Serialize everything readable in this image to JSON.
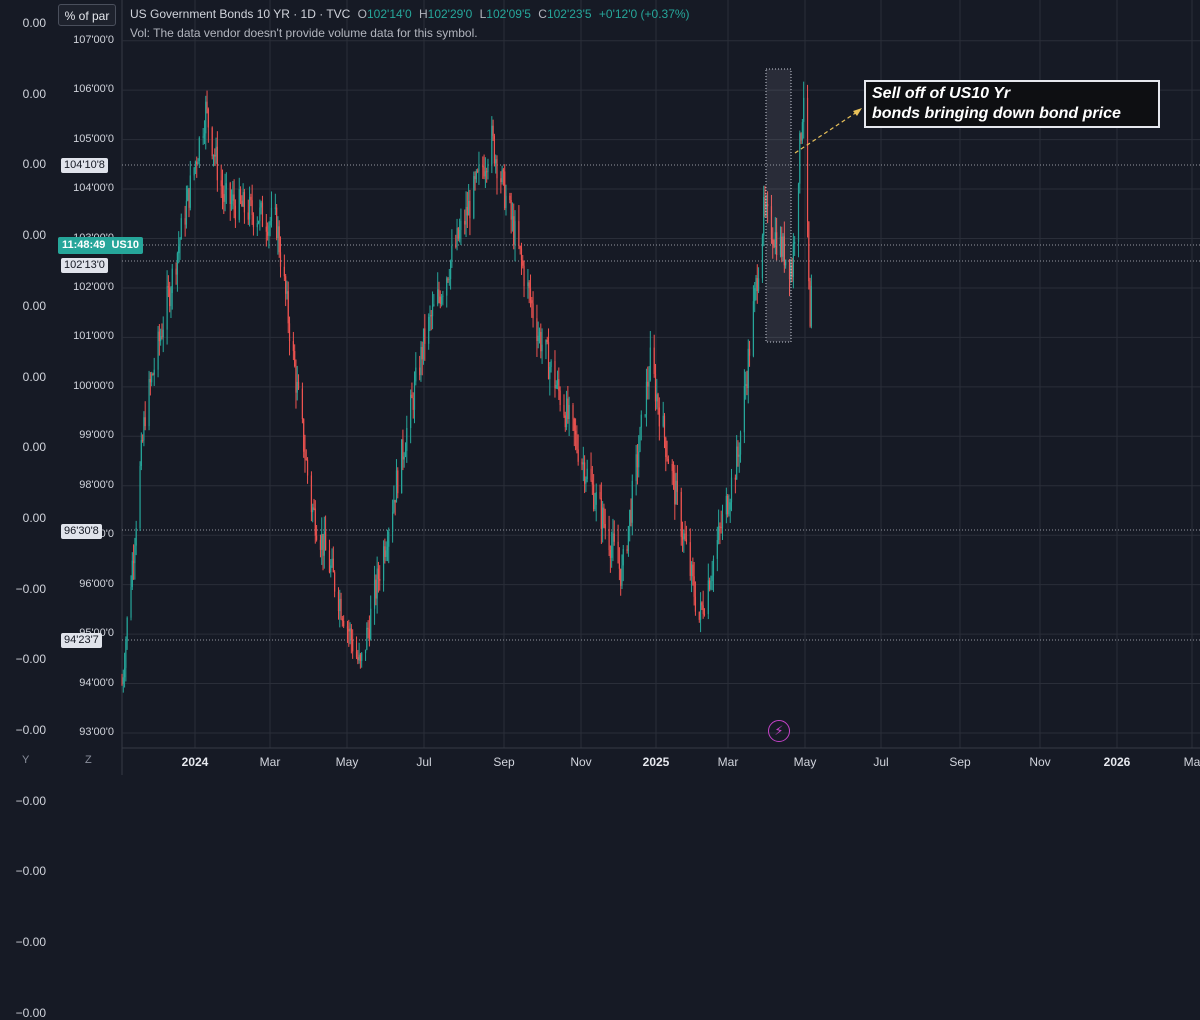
{
  "header": {
    "unit_button": "% of par",
    "title": "US Government Bonds 10 YR · 1D · TVC",
    "open_label": "O",
    "open_value": "102'14'0",
    "high_label": "H",
    "high_value": "102'29'0",
    "low_label": "L",
    "low_value": "102'09'5",
    "close_label": "C",
    "close_value": "102'23'5",
    "change": "+0'12'0 (+0.37%)",
    "volume_note": "Vol: The data vendor doesn't provide volume data for this symbol."
  },
  "left_scale": [
    "0.00",
    "0.00",
    "0.00",
    "0.00",
    "0.00",
    "0.00",
    "0.00",
    "0.00",
    "−0.00",
    "−0.00",
    "−0.00",
    "−0.00",
    "−0.00",
    "−0.00",
    "−0.00"
  ],
  "price_tags": {
    "live_time": "11:48:49",
    "live_symbol": "US10",
    "tag_104": "104'10'8",
    "tag_102": "102'13'0",
    "tag_96": "96'30'8",
    "tag_94": "94'23'7"
  },
  "annotation": {
    "line1": "Sell off of US10 Yr",
    "line2": "bonds bringing down bond price"
  },
  "corner": {
    "left": "Y",
    "right": "Z"
  },
  "colors": {
    "up": "#26a69a",
    "down": "#ef5350",
    "background": "#161a25",
    "grid": "#2a2e39",
    "annotation_border": "#e6e8ee",
    "accent": "#c542c9"
  },
  "icons": {
    "event": "lightning-bolt-icon"
  },
  "chart_data": {
    "type": "candlestick",
    "xlabels": [
      "2024",
      "Mar",
      "May",
      "Jul",
      "Sep",
      "Nov",
      "2025",
      "Mar",
      "May",
      "Jul",
      "Sep",
      "Nov",
      "2026",
      "Ma"
    ],
    "ylabels": [
      "93'00'0",
      "94'00'0",
      "95'00'0",
      "96'00'0",
      "97'00'0",
      "98'00'0",
      "99'00'0",
      "100'00'0",
      "101'00'0",
      "102'00'0",
      "103'00'0",
      "104'00'0",
      "105'00'0",
      "106'00'0",
      "107'00'0"
    ],
    "ylim": [
      92.6,
      107.1
    ],
    "x": [
      "2023-10-23",
      "2023-11-10",
      "2023-12-27",
      "2024-01-10",
      "2024-02-20",
      "2024-03-18",
      "2024-04-25",
      "2024-06-14",
      "2024-08-05",
      "2024-09-10",
      "2024-11-14",
      "2024-12-06",
      "2025-01-13",
      "2025-02-12",
      "2025-03-04",
      "2025-03-26",
      "2025-04-04",
      "2025-04-09",
      "2025-04-11"
    ],
    "close": [
      94.0,
      99.5,
      105.6,
      103.8,
      103.3,
      97.6,
      94.3,
      101.0,
      105.0,
      101.1,
      96.2,
      100.5,
      95.3,
      98.6,
      103.5,
      102.4,
      106.0,
      101.0,
      102.7
    ]
  }
}
